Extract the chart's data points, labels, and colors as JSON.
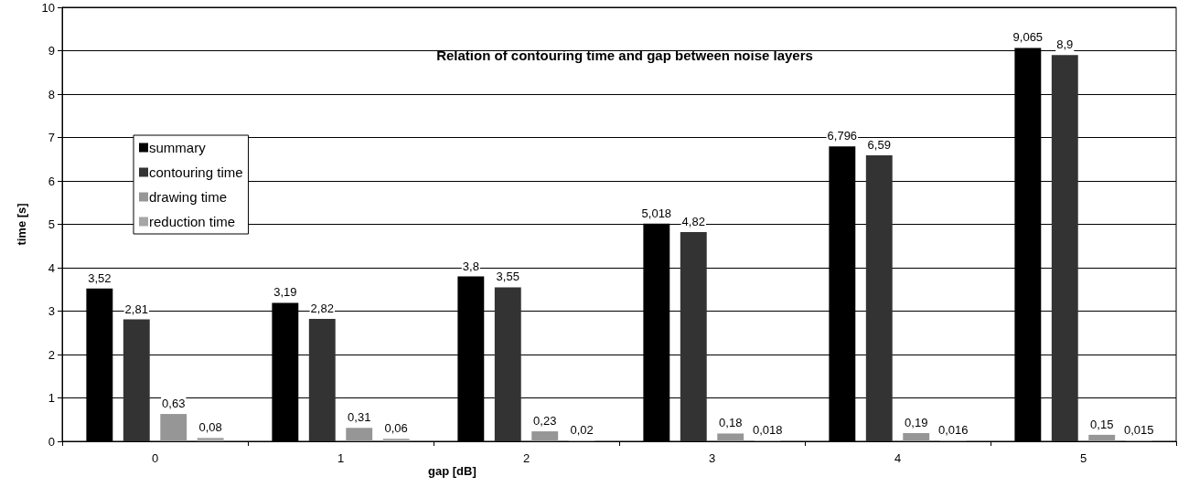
{
  "chart_data": {
    "type": "bar",
    "title": "Relation of contouring time and gap between noise layers",
    "xlabel": "gap [dB]",
    "ylabel": "time [s]",
    "categories": [
      "0",
      "1",
      "2",
      "3",
      "4",
      "5"
    ],
    "series": [
      {
        "name": "summary",
        "color": "#000000",
        "values": [
          3.52,
          3.19,
          3.8,
          5.018,
          6.796,
          9.065
        ],
        "value_labels": [
          "3,52",
          "3,19",
          "3,8",
          "5,018",
          "6,796",
          "9,065"
        ]
      },
      {
        "name": "contouring time",
        "color": "#333333",
        "values": [
          2.81,
          2.82,
          3.55,
          4.82,
          6.59,
          8.9
        ],
        "value_labels": [
          "2,81",
          "2,82",
          "3,55",
          "4,82",
          "6,59",
          "8,9"
        ]
      },
      {
        "name": "drawing time",
        "color": "#969696",
        "values": [
          0.63,
          0.31,
          0.23,
          0.18,
          0.19,
          0.15
        ],
        "value_labels": [
          "0,63",
          "0,31",
          "0,23",
          "0,18",
          "0,19",
          "0,15"
        ]
      },
      {
        "name": "reduction time",
        "color": "#a6a6a6",
        "values": [
          0.08,
          0.06,
          0.02,
          0.018,
          0.016,
          0.015
        ],
        "value_labels": [
          "0,08",
          "0,06",
          "0,02",
          "0,018",
          "0,016",
          "0,015"
        ]
      }
    ],
    "ylim": [
      0,
      10
    ],
    "yticks": [
      0,
      1,
      2,
      3,
      4,
      5,
      6,
      7,
      8,
      9,
      10
    ],
    "grid": "y",
    "legend": "top left"
  }
}
